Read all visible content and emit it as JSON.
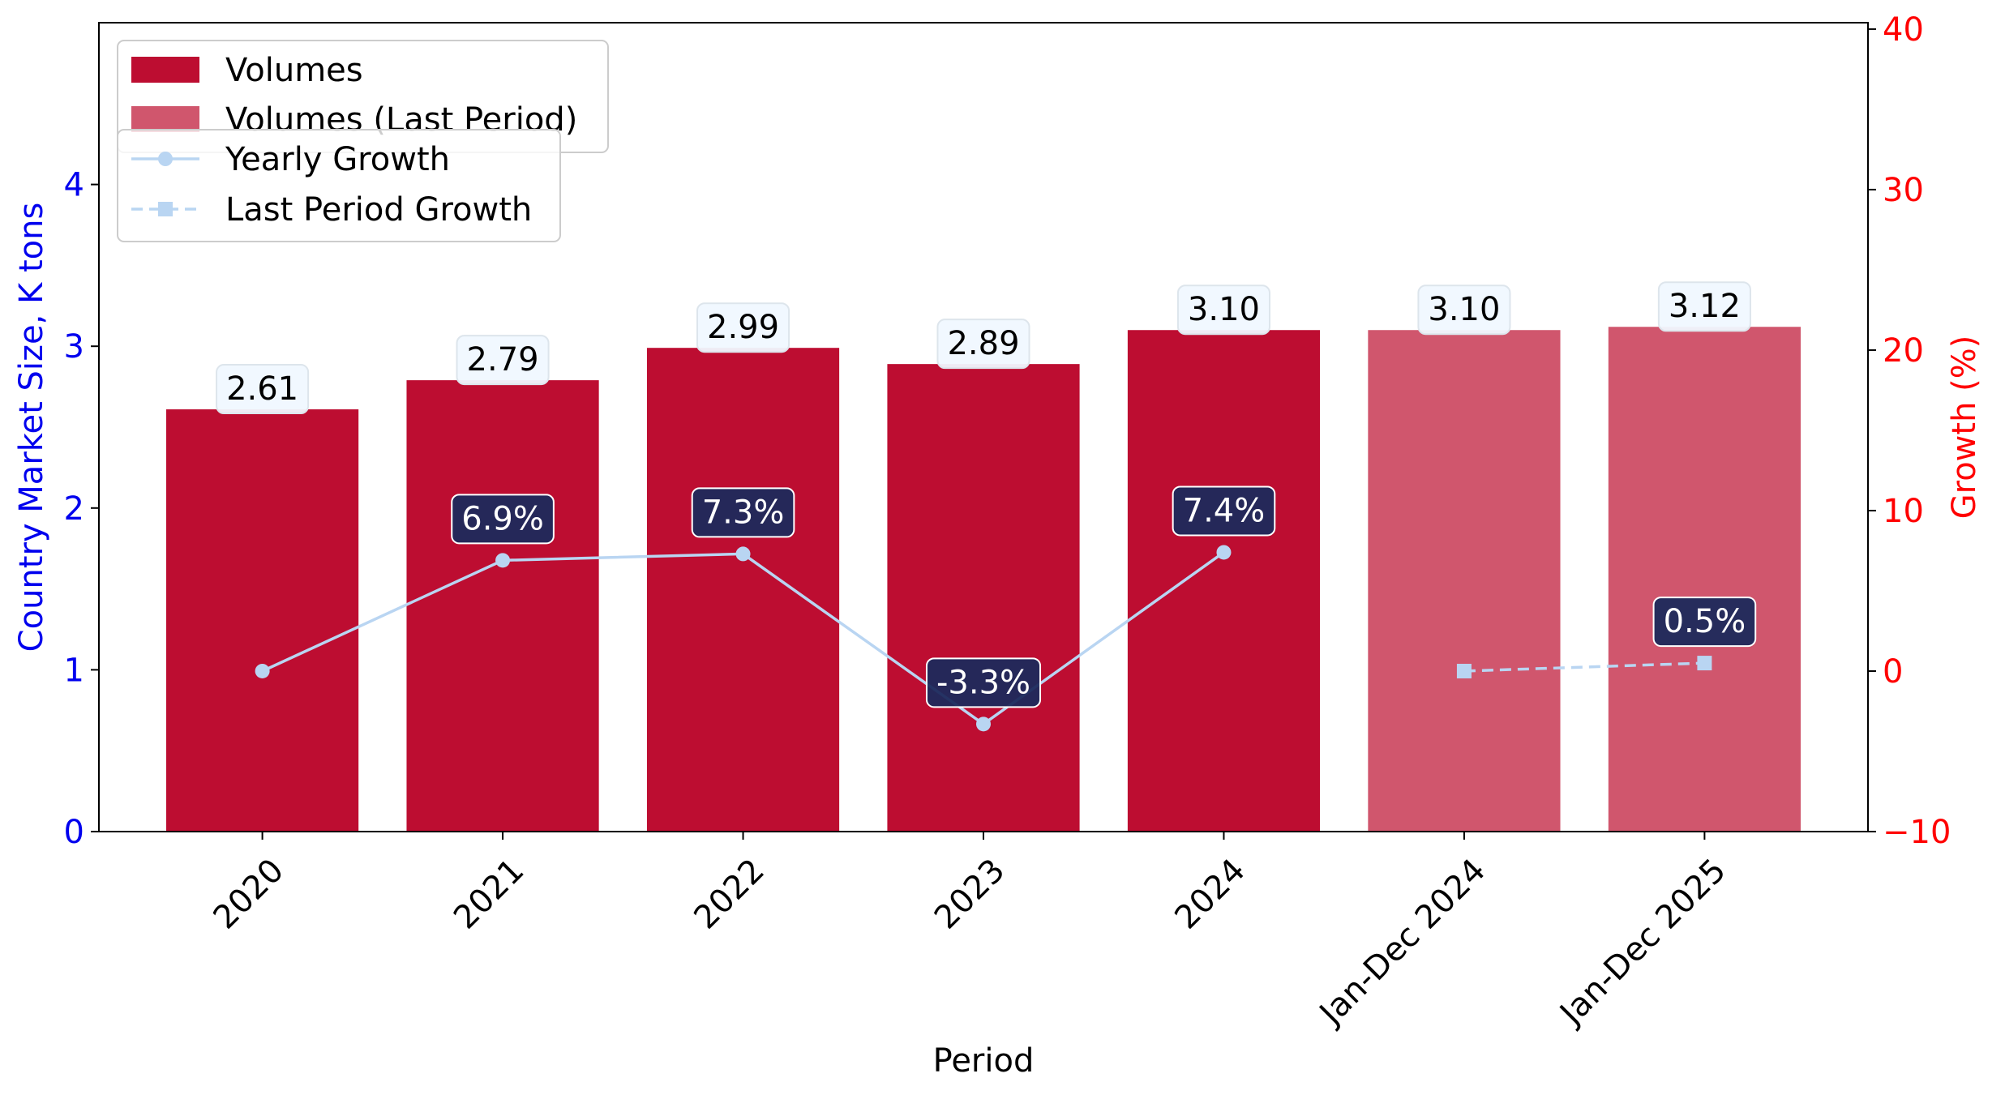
{
  "chart_data": {
    "type": "bar",
    "categories": [
      "2020",
      "2021",
      "2022",
      "2023",
      "2024",
      "Jan-Dec 2024",
      "Jan-Dec 2025"
    ],
    "series": [
      {
        "name": "Volumes",
        "kind": "bar",
        "axis": "left",
        "color": "#bd0d31",
        "values": [
          2.61,
          2.79,
          2.99,
          2.89,
          3.1,
          null,
          null
        ],
        "labels": [
          "2.61",
          "2.79",
          "2.99",
          "2.89",
          "3.10",
          "",
          ""
        ]
      },
      {
        "name": "Volumes (Last Period)",
        "kind": "bar",
        "axis": "left",
        "color": "#d0566d",
        "values": [
          null,
          null,
          null,
          null,
          null,
          3.1,
          3.12
        ],
        "labels": [
          "",
          "",
          "",
          "",
          "",
          "3.10",
          "3.12"
        ]
      },
      {
        "name": "Yearly Growth",
        "kind": "line",
        "axis": "right",
        "color": "#b9d5f2",
        "marker": "circle",
        "line_style": "solid",
        "values": [
          0.0,
          6.9,
          7.3,
          -3.3,
          7.4,
          null,
          null
        ],
        "labels": [
          "",
          "6.9%",
          "7.3%",
          "-3.3%",
          "7.4%",
          "",
          ""
        ]
      },
      {
        "name": "Last Period Growth",
        "kind": "line",
        "axis": "right",
        "color": "#b9d5f2",
        "marker": "square",
        "line_style": "dashed",
        "values": [
          null,
          null,
          null,
          null,
          null,
          0.0,
          0.5
        ],
        "labels": [
          "",
          "",
          "",
          "",
          "",
          "",
          "0.5%"
        ]
      }
    ],
    "xlabel": "Period",
    "ylabel": "Country Market Size, K tons",
    "y2label": "Growth (%)",
    "ylim": [
      0,
      5
    ],
    "y2lim": [
      -10,
      40.4
    ],
    "yticks": [
      "0",
      "1",
      "2",
      "3",
      "4"
    ],
    "y2ticks": [
      "−10",
      "0",
      "10",
      "20",
      "30",
      "40"
    ],
    "ylabel_color": "#0000ee",
    "y2label_color": "#ff0000",
    "value_label_bg": "#f0f8ff",
    "growth_label_bg": "#1c2a5c",
    "grid": false,
    "legend_placement": "top-left"
  }
}
